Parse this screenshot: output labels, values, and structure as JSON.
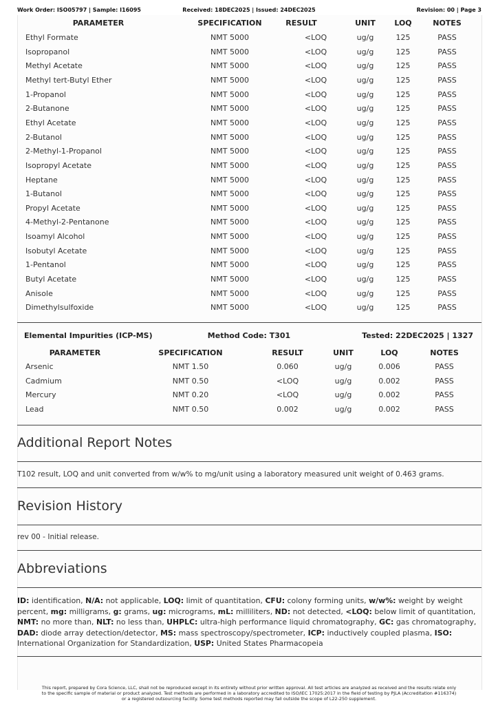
{
  "header": {
    "left": "Work Order: ISO05797 | Sample: I16095",
    "center": "Received: 18DEC2025 | Issued: 24DEC2025",
    "right": "Revision: 00 | Page 3"
  },
  "table": {
    "headers": [
      "PARAMETER",
      "SPECIFICATION",
      "RESULT",
      "UNIT",
      "LOQ",
      "NOTES"
    ],
    "rows": [
      [
        "Ethyl Formate",
        "NMT 5000",
        "<LOQ",
        "ug/g",
        "125",
        "PASS"
      ],
      [
        "Isopropanol",
        "NMT 5000",
        "<LOQ",
        "ug/g",
        "125",
        "PASS"
      ],
      [
        "Methyl Acetate",
        "NMT 5000",
        "<LOQ",
        "ug/g",
        "125",
        "PASS"
      ],
      [
        "Methyl tert-Butyl Ether",
        "NMT 5000",
        "<LOQ",
        "ug/g",
        "125",
        "PASS"
      ],
      [
        "1-Propanol",
        "NMT 5000",
        "<LOQ",
        "ug/g",
        "125",
        "PASS"
      ],
      [
        "2-Butanone",
        "NMT 5000",
        "<LOQ",
        "ug/g",
        "125",
        "PASS"
      ],
      [
        "Ethyl Acetate",
        "NMT 5000",
        "<LOQ",
        "ug/g",
        "125",
        "PASS"
      ],
      [
        "2-Butanol",
        "NMT 5000",
        "<LOQ",
        "ug/g",
        "125",
        "PASS"
      ],
      [
        "2-Methyl-1-Propanol",
        "NMT 5000",
        "<LOQ",
        "ug/g",
        "125",
        "PASS"
      ],
      [
        "Isopropyl Acetate",
        "NMT 5000",
        "<LOQ",
        "ug/g",
        "125",
        "PASS"
      ],
      [
        "Heptane",
        "NMT 5000",
        "<LOQ",
        "ug/g",
        "125",
        "PASS"
      ],
      [
        "1-Butanol",
        "NMT 5000",
        "<LOQ",
        "ug/g",
        "125",
        "PASS"
      ],
      [
        "Propyl Acetate",
        "NMT 5000",
        "<LOQ",
        "ug/g",
        "125",
        "PASS"
      ],
      [
        "4-Methyl-2-Pentanone",
        "NMT 5000",
        "<LOQ",
        "ug/g",
        "125",
        "PASS"
      ],
      [
        "Isoamyl Alcohol",
        "NMT 5000",
        "<LOQ",
        "ug/g",
        "125",
        "PASS"
      ],
      [
        "Isobutyl Acetate",
        "NMT 5000",
        "<LOQ",
        "ug/g",
        "125",
        "PASS"
      ],
      [
        "1-Pentanol",
        "NMT 5000",
        "<LOQ",
        "ug/g",
        "125",
        "PASS"
      ],
      [
        "Butyl Acetate",
        "NMT 5000",
        "<LOQ",
        "ug/g",
        "125",
        "PASS"
      ],
      [
        "Anisole",
        "NMT 5000",
        "<LOQ",
        "ug/g",
        "125",
        "PASS"
      ],
      [
        "Dimethylsulfoxide",
        "NMT 5000",
        "<LOQ",
        "ug/g",
        "125",
        "PASS"
      ]
    ]
  },
  "elemental": {
    "title": "Elemental Impurities (ICP-MS)",
    "method": "Method Code: T301",
    "tested": "Tested: 22DEC2025 | 1327",
    "headers": [
      "PARAMETER",
      "SPECIFICATION",
      "RESULT",
      "UNIT",
      "LOQ",
      "NOTES"
    ],
    "rows": [
      [
        "Arsenic",
        "NMT 1.50",
        "0.060",
        "ug/g",
        "0.006",
        "PASS"
      ],
      [
        "Cadmium",
        "NMT 0.50",
        "<LOQ",
        "ug/g",
        "0.002",
        "PASS"
      ],
      [
        "Mercury",
        "NMT 0.20",
        "<LOQ",
        "ug/g",
        "0.002",
        "PASS"
      ],
      [
        "Lead",
        "NMT 0.50",
        "0.002",
        "ug/g",
        "0.002",
        "PASS"
      ]
    ]
  },
  "notes": {
    "title": "Additional Report Notes",
    "text": "T102 result, LOQ and unit converted from w/w% to mg/unit using a laboratory measured unit weight of 0.463 grams."
  },
  "revision": {
    "title": "Revision History",
    "text": "rev 00 - Initial release."
  },
  "abbreviations": {
    "title": "Abbreviations",
    "items": [
      [
        "ID:",
        "identification,"
      ],
      [
        "N/A:",
        "not applicable,"
      ],
      [
        "LOQ:",
        "limit of quantitation,"
      ],
      [
        "CFU:",
        "colony forming units,"
      ],
      [
        "w/w%:",
        "weight by weight percent,"
      ],
      [
        "mg:",
        "milligrams,"
      ],
      [
        "g:",
        "grams,"
      ],
      [
        "ug:",
        "micrograms,"
      ],
      [
        "mL:",
        "milliliters,"
      ],
      [
        "ND:",
        "not detected,"
      ],
      [
        "<LOQ:",
        "below limit of quantitation,"
      ],
      [
        "NMT:",
        "no more than,"
      ],
      [
        "NLT:",
        "no less than,"
      ],
      [
        "UHPLC:",
        "ultra-high performance liquid chromatography,"
      ],
      [
        "GC:",
        "gas chromatography,"
      ],
      [
        "DAD:",
        "diode array detection/detector,"
      ],
      [
        "MS:",
        "mass spectroscopy/spectrometer,"
      ],
      [
        "ICP:",
        "inductively coupled plasma,"
      ],
      [
        "ISO:",
        "International Organization for Standardization,"
      ],
      [
        "USP:",
        "United States Pharmacopeia"
      ]
    ]
  },
  "footer": [
    "This report, prepared by Cora Science, LLC, shall not be reproduced except in its entirety without prior written approval. All test articles are analyzed as received and the results relate only",
    "to the specific sample of material or product analyzed. Test methods are performed in a laboratory accredited to ISO/IEC 17025:2017 in the field of testing by PJLA (Accreditation #116374)",
    "or a registered outsourcing facility. Some test methods reported may fall outside the scope of L22-250 supplement."
  ]
}
